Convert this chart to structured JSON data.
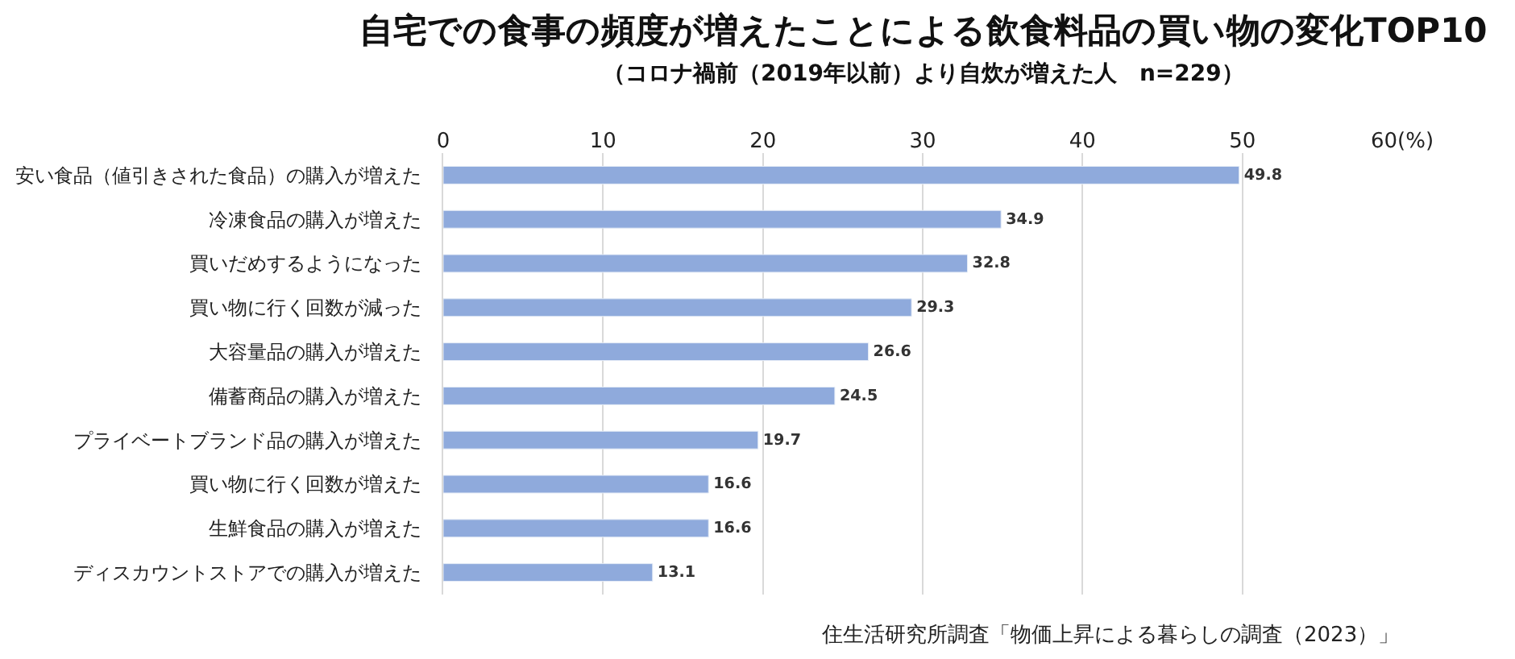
{
  "chart_data": {
    "type": "bar",
    "orientation": "horizontal",
    "title": "自宅での食事の頻度が増えたことによる飲食料品の買い物の変化TOP10",
    "subtitle": "（コロナ禍前（2019年以前）より自炊が増えた人　n=229）",
    "categories": [
      "安い食品（値引きされた食品）の購入が増えた",
      "冷凍食品の購入が増えた",
      "買いだめするようになった",
      "買い物に行く回数が減った",
      "大容量品の購入が増えた",
      "備蓄商品の購入が増えた",
      "プライベートブランド品の購入が増えた",
      "買い物に行く回数が増えた",
      "生鮮食品の購入が増えた",
      "ディスカウントストアでの購入が増えた"
    ],
    "values": [
      49.8,
      34.9,
      32.8,
      29.3,
      26.6,
      24.5,
      19.7,
      16.6,
      16.6,
      13.1
    ],
    "color": "#8faadc",
    "data_labels": true,
    "xlim": [
      0,
      60
    ],
    "xticks": [
      0,
      10,
      20,
      30,
      40,
      50,
      {
        "value": 60,
        "label": "60(%)"
      }
    ],
    "grid": "x",
    "legend": false,
    "annotations": [
      "住生活研究所調査「物価上昇による暮らしの調査（2023）」"
    ]
  }
}
